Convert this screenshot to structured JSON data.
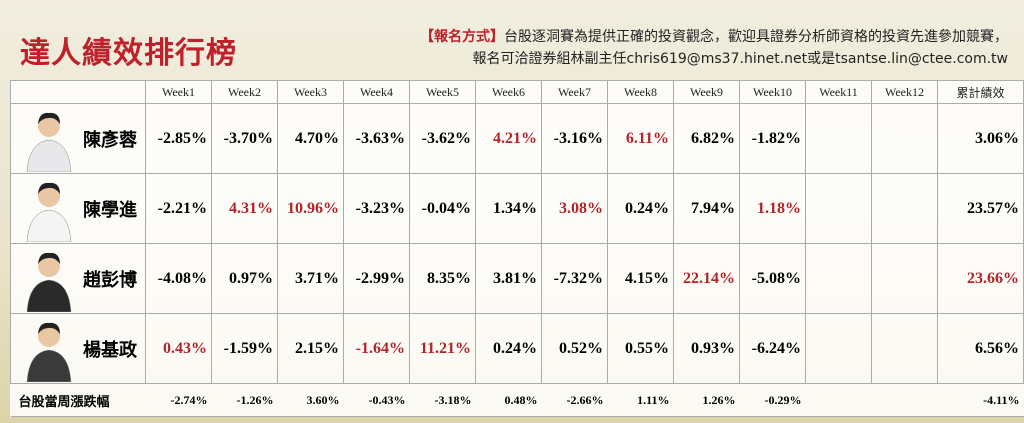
{
  "header": {
    "title": "達人績效排行榜",
    "notice_label": "【報名方式】",
    "notice_lines": [
      "台股逐洞賽為提供正確的投資觀念，歡迎具證券分析師資格的投資先進參加競賽，",
      "報名可洽證券組林副主任chris619@ms37.hinet.net或是tsantse.lin@ctee.com.tw"
    ]
  },
  "table": {
    "columns": [
      "Week1",
      "Week2",
      "Week3",
      "Week4",
      "Week5",
      "Week6",
      "Week7",
      "Week8",
      "Week9",
      "Week10",
      "Week11",
      "Week12",
      "累計績效"
    ],
    "highlight_color": "#b0252a",
    "rows": [
      {
        "name": "陳彥蓉",
        "weeks": [
          "-2.85%",
          "-3.70%",
          "4.70%",
          "-3.63%",
          "-3.62%",
          "4.21%",
          "-3.16%",
          "6.11%",
          "6.82%",
          "-1.82%"
        ],
        "total": "3.06%"
      },
      {
        "name": "陳學進",
        "weeks": [
          "-2.21%",
          "4.31%",
          "10.96%",
          "-3.23%",
          "-0.04%",
          "1.34%",
          "3.08%",
          "0.24%",
          "7.94%",
          "1.18%"
        ],
        "total": "23.57%"
      },
      {
        "name": "趙彭博",
        "weeks": [
          "-4.08%",
          "0.97%",
          "3.71%",
          "-2.99%",
          "8.35%",
          "3.81%",
          "-7.32%",
          "4.15%",
          "22.14%",
          "-5.08%"
        ],
        "total": "23.66%"
      },
      {
        "name": "楊基政",
        "weeks": [
          "0.43%",
          "-1.59%",
          "2.15%",
          "-1.64%",
          "11.21%",
          "0.24%",
          "0.52%",
          "0.55%",
          "0.93%",
          "-6.24%"
        ],
        "total": "6.56%"
      }
    ],
    "footer": {
      "label": "台股當周漲跌幅",
      "weeks": [
        "-2.74%",
        "-1.26%",
        "3.60%",
        "-0.43%",
        "-3.18%",
        "0.48%",
        "-2.66%",
        "1.11%",
        "1.26%",
        "-0.29%"
      ],
      "total": "-4.11%"
    }
  }
}
